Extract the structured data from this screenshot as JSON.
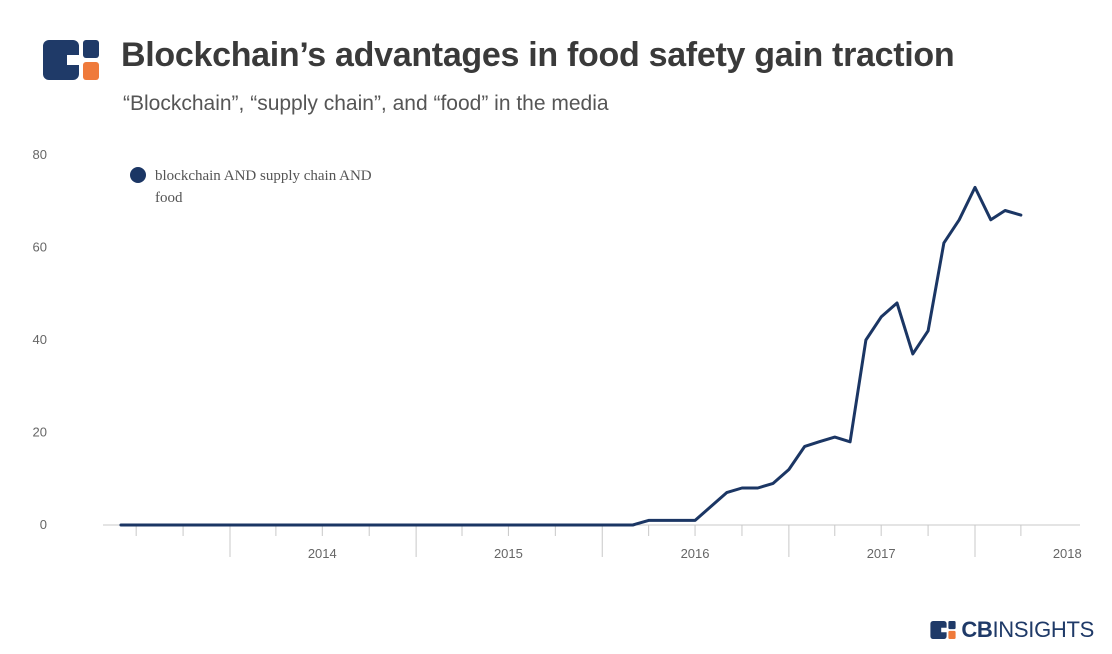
{
  "header": {
    "title": "Blockchain’s advantages in food safety gain traction",
    "subtitle": "“Blockchain”, “supply chain”, and “food” in the media"
  },
  "brand": {
    "name_bold": "CB",
    "name_rest": "INSIGHTS",
    "colors": {
      "navy": "#1f3a68",
      "orange": "#ef7a3b"
    }
  },
  "chart_data": {
    "type": "line",
    "title": "Blockchain’s advantages in food safety gain traction",
    "subtitle": "“Blockchain”, “supply chain”, and “food” in the media",
    "xlabel": "",
    "ylabel": "",
    "ylim": [
      0,
      80
    ],
    "xlim": [
      "2013-05-01",
      "2018-06-01"
    ],
    "y_ticks": [
      0,
      20,
      40,
      60,
      80
    ],
    "x_ticks": [
      "2014",
      "2015",
      "2016",
      "2017",
      "2018"
    ],
    "grid": false,
    "legend_position": "top-left",
    "series": [
      {
        "name": "blockchain AND supply chain AND food",
        "color": "#1b3664",
        "points": [
          [
            "2013-06-01",
            0
          ],
          [
            "2013-12-01",
            0
          ],
          [
            "2014-06-01",
            0
          ],
          [
            "2014-12-01",
            0
          ],
          [
            "2015-06-01",
            0
          ],
          [
            "2015-12-01",
            0
          ],
          [
            "2016-03-01",
            0
          ],
          [
            "2016-04-01",
            1
          ],
          [
            "2016-05-01",
            1
          ],
          [
            "2016-06-01",
            1
          ],
          [
            "2016-07-01",
            1
          ],
          [
            "2016-08-01",
            4
          ],
          [
            "2016-09-01",
            7
          ],
          [
            "2016-10-01",
            8
          ],
          [
            "2016-11-01",
            8
          ],
          [
            "2016-12-01",
            9
          ],
          [
            "2017-01-01",
            12
          ],
          [
            "2017-02-01",
            17
          ],
          [
            "2017-03-01",
            18
          ],
          [
            "2017-04-01",
            19
          ],
          [
            "2017-05-01",
            18
          ],
          [
            "2017-06-01",
            40
          ],
          [
            "2017-07-01",
            45
          ],
          [
            "2017-08-01",
            48
          ],
          [
            "2017-09-01",
            37
          ],
          [
            "2017-10-01",
            42
          ],
          [
            "2017-11-01",
            61
          ],
          [
            "2017-12-01",
            66
          ],
          [
            "2018-01-01",
            73
          ],
          [
            "2018-02-01",
            66
          ],
          [
            "2018-03-01",
            68
          ],
          [
            "2018-04-01",
            67
          ]
        ]
      }
    ]
  }
}
